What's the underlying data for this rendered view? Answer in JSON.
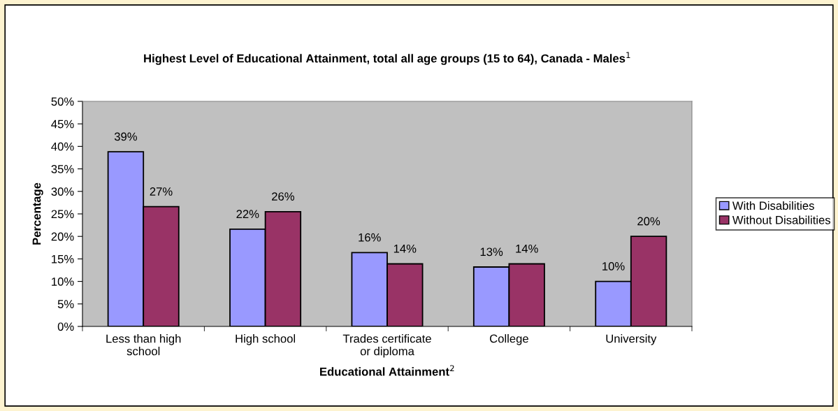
{
  "chart_data": {
    "type": "bar",
    "title": "Highest Level of Educational Attainment, total all age groups (15 to 64), Canada - Males$^{1}$",
    "xlabel": "Educational Attainment$^{2}$",
    "ylabel": "Percentage",
    "categories": [
      "Less than high\nschool",
      "High school",
      "Trades certificate\nor diploma",
      "College",
      "University"
    ],
    "series": [
      {
        "name": "With Disabilities",
        "color": "#9999ff",
        "values": [
          38.8,
          21.6,
          16.4,
          13.2,
          10.0
        ],
        "value_labels": [
          "39%",
          "22%",
          "16%",
          "13%",
          "10%"
        ]
      },
      {
        "name": "Without Disabilities",
        "color": "#993366",
        "values": [
          26.6,
          25.5,
          13.9,
          13.9,
          20.0
        ],
        "value_labels": [
          "27%",
          "26%",
          "14%",
          "14%",
          "20%"
        ]
      }
    ],
    "ylim": [
      0,
      50
    ],
    "yticks": [
      {
        "value": 0,
        "label": "0%"
      },
      {
        "value": 5,
        "label": "5%"
      },
      {
        "value": 10,
        "label": "10%"
      },
      {
        "value": 15,
        "label": "15%"
      },
      {
        "value": 20,
        "label": "20%"
      },
      {
        "value": 25,
        "label": "25%"
      },
      {
        "value": 30,
        "label": "30%"
      },
      {
        "value": 35,
        "label": "35%"
      },
      {
        "value": 40,
        "label": "40%"
      },
      {
        "value": 45,
        "label": "45%"
      },
      {
        "value": 50,
        "label": "50%"
      }
    ],
    "grid": false,
    "legend": "right"
  }
}
